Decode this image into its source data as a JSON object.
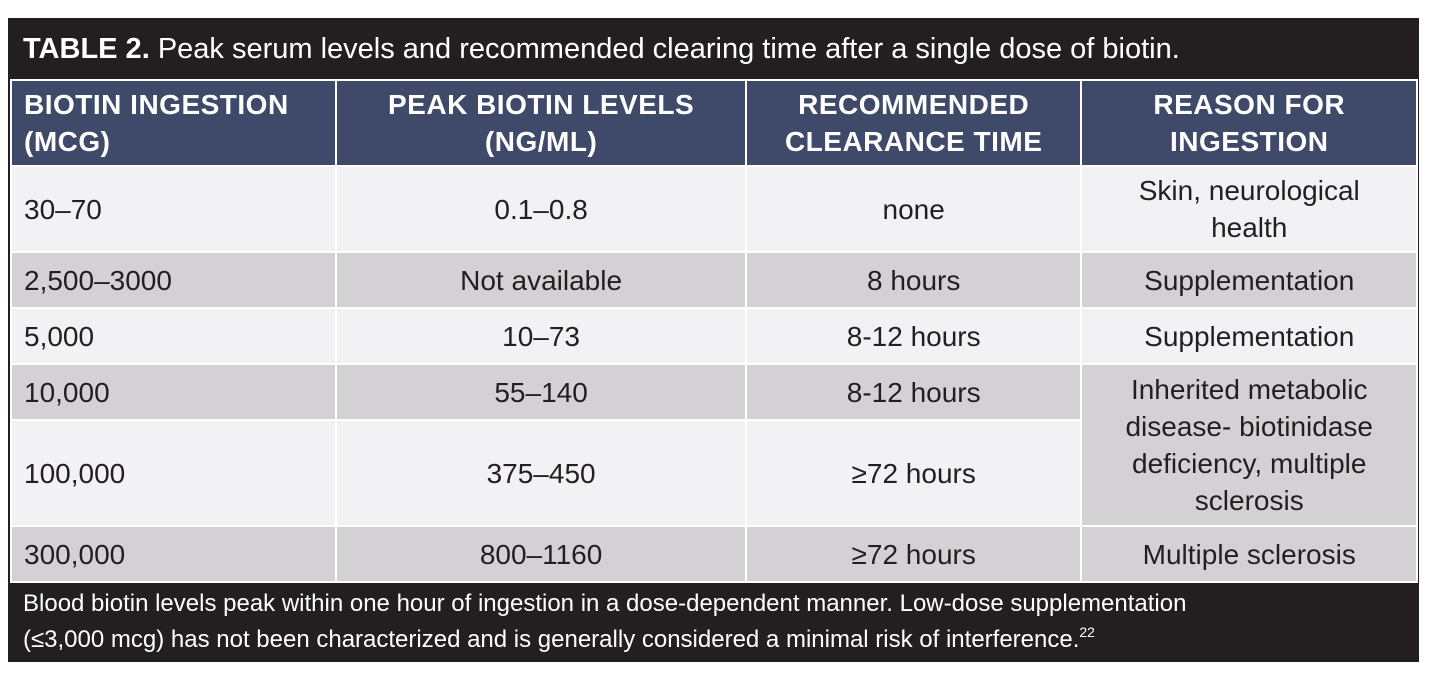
{
  "title": {
    "label": "TABLE 2.",
    "text": "Peak serum levels and recommended clearing time after a single dose of biotin."
  },
  "headers": [
    [
      "BIOTIN INGESTION",
      "(MCG)"
    ],
    [
      "PEAK BIOTIN LEVELS",
      "(NG/ML)"
    ],
    [
      "RECOMMENDED",
      "CLEARANCE TIME"
    ],
    [
      "REASON FOR",
      "INGESTION"
    ]
  ],
  "rows": [
    {
      "dose": "30–70",
      "peak": "0.1–0.8",
      "clearance": "none",
      "reason": [
        "Skin, neurological",
        "health"
      ]
    },
    {
      "dose": "2,500–3000",
      "peak": "Not available",
      "clearance": "8 hours",
      "reason": [
        "Supplementation"
      ]
    },
    {
      "dose": "5,000",
      "peak": "10–73",
      "clearance": "8-12 hours",
      "reason": [
        "Supplementation"
      ]
    },
    {
      "dose": "10,000",
      "peak": "55–140",
      "clearance": "8-12 hours"
    },
    {
      "dose": "100,000",
      "peak": "375–450",
      "clearance": "≥72 hours"
    },
    {
      "dose": "300,000",
      "peak": "800–1160",
      "clearance": "≥72 hours",
      "reason": [
        "Multiple sclerosis"
      ]
    }
  ],
  "merged_reason": [
    "Inherited metabolic",
    "disease- biotinidase",
    "deficiency, multiple",
    "sclerosis"
  ],
  "footnote": {
    "line1": "Blood biotin levels peak within one hour of ingestion in a dose-dependent manner. Low-dose supplementation",
    "line2": "(≤3,000 mcg) has not been characterized and is generally considered a minimal risk of interference.",
    "ref": "22"
  },
  "colors": {
    "frame": "#231f20",
    "header": "#3f4a6a",
    "row_light": "#f2f2f4",
    "row_dark": "#d4d1d5"
  }
}
